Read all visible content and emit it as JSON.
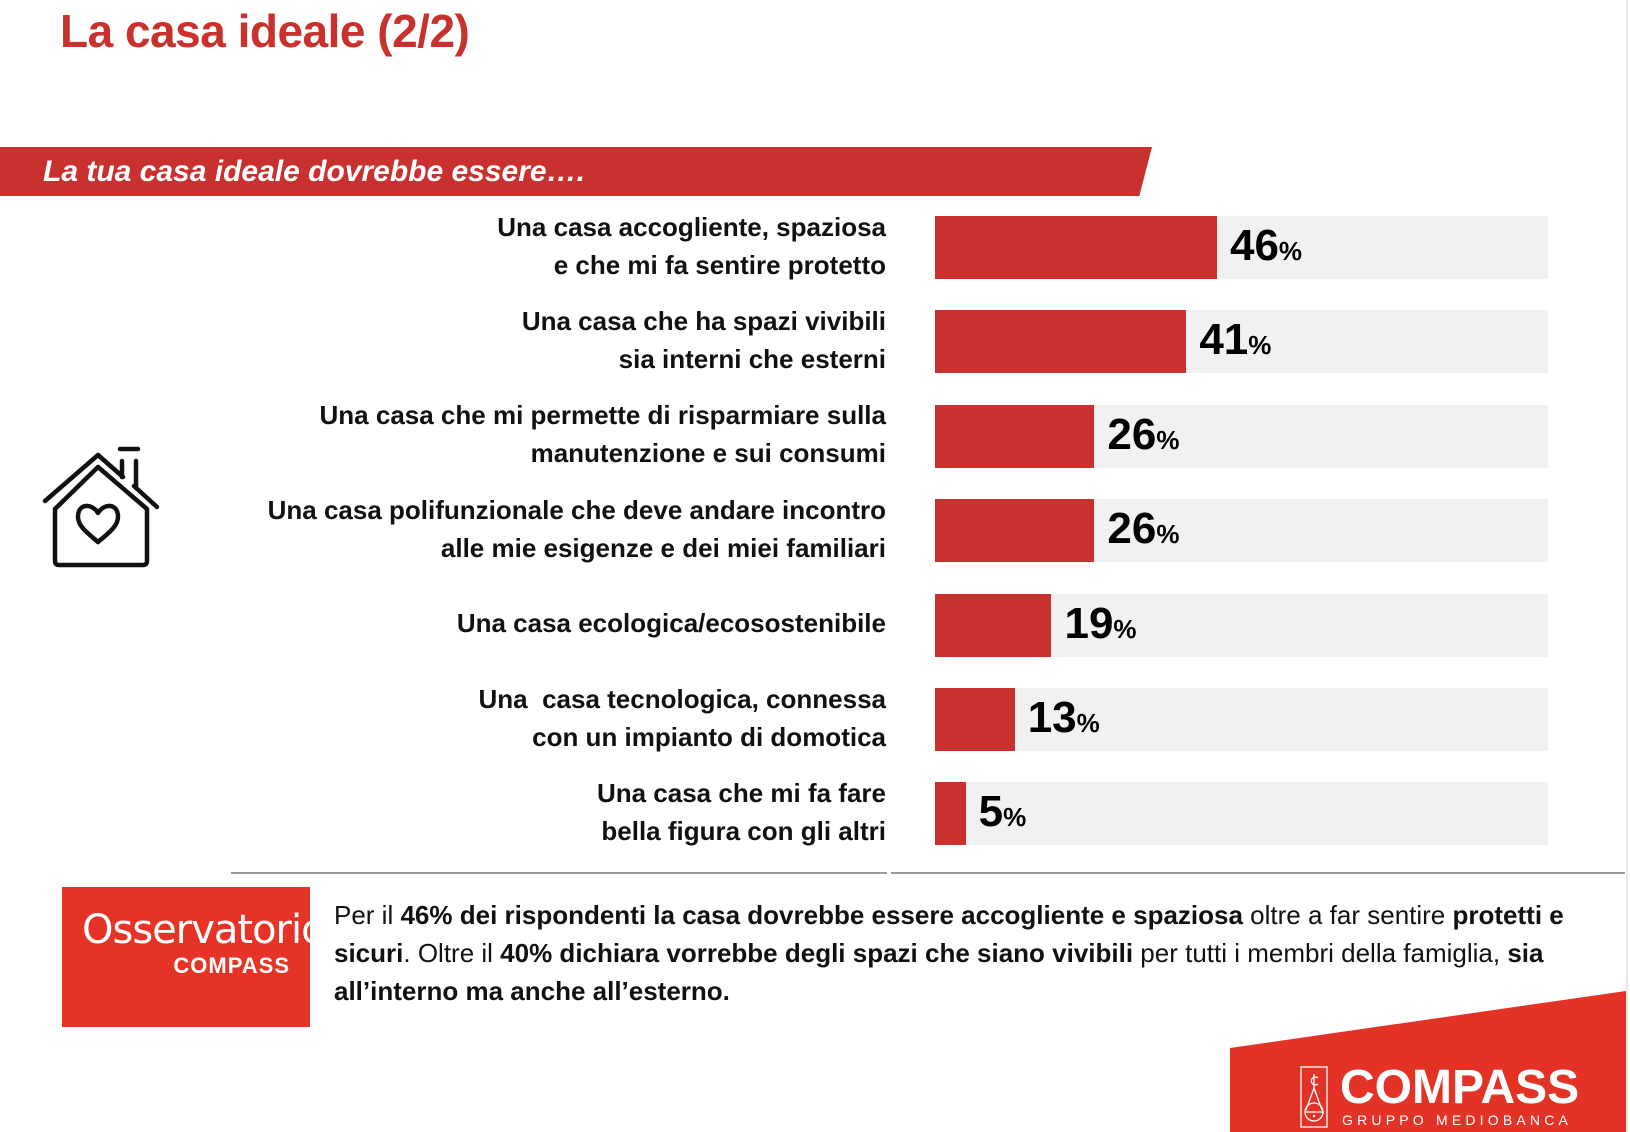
{
  "header": {
    "title": "La casa ideale (2/2)"
  },
  "banner": {
    "question": "La tua casa ideale dovrebbe essere…."
  },
  "icon": {
    "name": "house-heart-icon"
  },
  "colors": {
    "accent": "#c8312d",
    "track": "#f1f1f1",
    "brand": "#e33327"
  },
  "chart_data": {
    "type": "bar",
    "orientation": "horizontal",
    "title": "La tua casa ideale dovrebbe essere….",
    "xlim": [
      0,
      100
    ],
    "unit": "%",
    "grid": false,
    "categories": [
      "Una casa accogliente, spaziosa\ne che mi fa sentire protetto",
      "Una casa che ha spazi vivibili\nsia interni che esterni",
      "Una casa che mi permette di risparmiare sulla\nmanutenzione e sui consumi",
      "Una casa polifunzionale che deve andare incontro\nalle mie esigenze e dei miei familiari",
      "Una casa ecologica/ecosostenibile",
      "Una  casa tecnologica, connessa\ncon un impianto di domotica",
      "Una casa che mi fa fare\nbella figura con gli altri"
    ],
    "values": [
      46,
      41,
      26,
      26,
      19,
      13,
      5
    ],
    "value_labels": [
      "46",
      "41",
      "26",
      "26",
      "19",
      "13",
      "5"
    ],
    "percent_sign": "%"
  },
  "summary": {
    "parts": [
      {
        "text": "Per il ",
        "bold": false
      },
      {
        "text": "46% dei rispondenti la casa dovrebbe essere accogliente e spaziosa",
        "bold": true
      },
      {
        "text": " oltre a far sentire ",
        "bold": false
      },
      {
        "text": "protetti e sicuri",
        "bold": true
      },
      {
        "text": ". Oltre il ",
        "bold": false
      },
      {
        "text": "40% dichiara vorrebbe degli spazi che siano vivibili",
        "bold": true
      },
      {
        "text": " per tutti i membri della famiglia, ",
        "bold": false
      },
      {
        "text": "sia all’interno ma anche all’esterno.",
        "bold": true
      }
    ]
  },
  "observatorio": {
    "title": "Osservatorio",
    "subtitle": "COMPASS"
  },
  "logo": {
    "name": "COMPASS",
    "tagline": "GRUPPO MEDIOBANCA"
  }
}
